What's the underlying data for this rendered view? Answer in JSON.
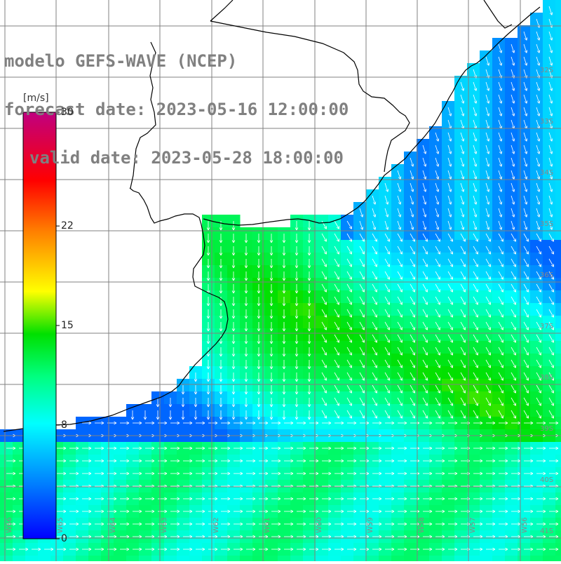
{
  "title": {
    "line1": "modelo GEFS-WAVE (NCEP)",
    "line2": "forecast date: 2023-05-16 12:00:00",
    "line3": "valid date: 2023-05-28 18:00:00"
  },
  "colorbar": {
    "unit": "[m/s]",
    "ticks": [
      "30",
      "22",
      "15",
      "8",
      "0"
    ],
    "tick_values": [
      30,
      22,
      15,
      8,
      0
    ],
    "colors": [
      "#0000ff",
      "#0080ff",
      "#00ffff",
      "#00ff80",
      "#00e000",
      "#ffff00",
      "#ff8000",
      "#ff0000",
      "#c00080"
    ]
  },
  "lat_labels": [
    "32S",
    "33S",
    "34S",
    "35S",
    "36S",
    "37S",
    "38S",
    "39S",
    "40S",
    "41S"
  ],
  "lon_labels": [
    "W66",
    "W65",
    "W64",
    "W63",
    "W62",
    "W61",
    "W60",
    "W59",
    "W58",
    "W57",
    "W56"
  ],
  "colors": {
    "land": "#ffffff",
    "grid": "#808080",
    "coast": "#000000",
    "arrow": "#ffffff",
    "title": "#808080"
  }
}
